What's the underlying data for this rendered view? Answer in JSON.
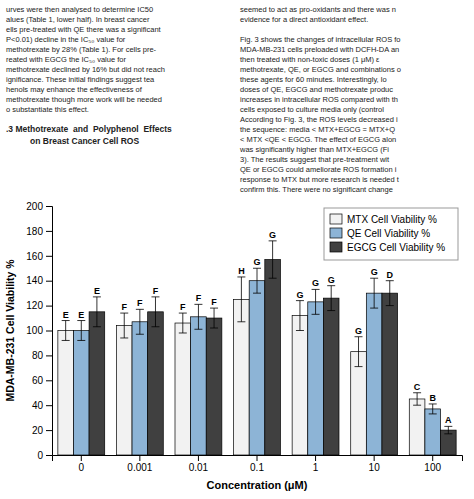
{
  "chart_data": {
    "type": "bar",
    "xlabel": "Concentration (μM)",
    "ylabel": "MDA-MB-231 Cell Viability %",
    "categories": [
      "0",
      "0.001",
      "0.01",
      "0.1",
      "1",
      "10",
      "100"
    ],
    "series": [
      {
        "name": "MTX Cell Viability %",
        "color": "#f2f2f2",
        "values": [
          100,
          104,
          106,
          125,
          112,
          83,
          45
        ],
        "errors": [
          8,
          10,
          8,
          18,
          12,
          12,
          5
        ],
        "letters": [
          "E",
          "F",
          "F",
          "H",
          "G",
          "G",
          "C"
        ]
      },
      {
        "name": "QE Cell Viability %",
        "color": "#8db4d6",
        "values": [
          100,
          107,
          111,
          140,
          123,
          130,
          37
        ],
        "errors": [
          8,
          10,
          10,
          10,
          10,
          12,
          4
        ],
        "letters": [
          "E",
          "F",
          "F",
          "G",
          "G",
          "G",
          "B"
        ]
      },
      {
        "name": "EGCG Cell Viability %",
        "color": "#404040",
        "values": [
          115,
          115,
          110,
          157,
          126,
          130,
          20
        ],
        "errors": [
          12,
          12,
          8,
          15,
          10,
          10,
          3
        ],
        "letters": [
          "E",
          "F",
          "F",
          "G",
          "G",
          "D",
          "A"
        ]
      }
    ],
    "ylim": [
      0,
      200
    ],
    "yticks": [
      0,
      20,
      40,
      60,
      80,
      100,
      120,
      140,
      160,
      180,
      200
    ],
    "grid": false,
    "legend": "upper right",
    "annotations": [
      [
        ".3 Methotrexate  and  Polyphenol  Effects",
        "on Breast Cancer Cell ROS"
      ],
      [
        "urves were then analysed to determine IC50",
        "alues (Table 1, lower half). In breast cancer",
        "ells pre-treated with QE there was a significant",
        "P<0.01) decline in the IC₅₀ value for",
        "methotrexate by 28% (Table 1). For cells pre-",
        "reated with EGCG the IC₅₀ value for",
        "methotrexate declined by 16% but did not reach",
        "ignificance. These initial findings suggest tea",
        "henols may enhance the effectiveness of",
        "methotrexate though more work will be needed",
        "o substantiate this effect."
      ],
      [
        "seemed to act as pro-oxidants and there was n",
        "evidence for a direct antioxidant effect."
      ],
      [
        "Fig. 3 shows the changes of intracellular ROS fo",
        "MDA-MB-231 cells preloaded with DCFH-DA an",
        "then treated with non-toxic doses (1 μM) ε",
        "methotrexate, QE, or EGCG and combinations o",
        "these agents for 60 minutes. Interestingly, lo",
        "doses of QE, EGCG and methotrexate produc",
        "increases in intracellular ROS compared with th",
        "cells exposed to culture media only (control",
        "According to Fig. 3, the ROS levels decreased i",
        "the sequence: media < MTX+EGCG = MTX+Q",
        "< MTX <QE < EGCG. The effect of EGCG alon",
        "was significantly higher than MTX+EGCG (Fi",
        "3). The results suggest that pre-treatment wit",
        "QE or EGCG could ameliorate ROS formation i",
        "response to MTX but more research is needed t",
        "confirm this. There were no significant change"
      ]
    ]
  }
}
